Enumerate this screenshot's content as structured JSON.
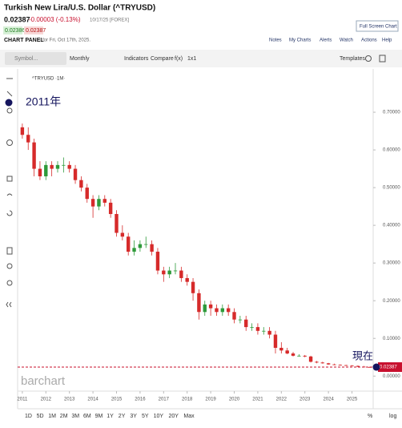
{
  "header": {
    "title": "Turkish New Lira/U.S. Dollar (^TRYUSD)",
    "last": "0.02387",
    "change": "-0.00003 (-0.13%)",
    "date": "10/17/25 [FOREX]",
    "bid": "0.02386",
    "ask": "0.02387",
    "fullscreen": "Full Screen Chart",
    "panel": "CHART PANEL",
    "panel_date": "for Fri, Oct 17th, 2025.",
    "links": [
      "Notes",
      "My Charts",
      "Alerts",
      "Watch",
      "Actions",
      "Help"
    ]
  },
  "toolbar": {
    "symbol": "Symbol...",
    "period": "Monthly",
    "indicators": "Indicators",
    "compare": "Compare",
    "fx": "f(x)",
    "layout": "1x1",
    "templates": "Templates"
  },
  "chart_data": {
    "type": "candlestick",
    "legend": "^TRYUSD ·1M·",
    "watermark": "barchart",
    "annotations": [
      "2011年",
      "現在"
    ],
    "x": [
      2011,
      2011.25,
      2011.5,
      2011.75,
      2012,
      2012.25,
      2012.5,
      2012.75,
      2013,
      2013.25,
      2013.5,
      2013.75,
      2014,
      2014.25,
      2014.5,
      2014.75,
      2015,
      2015.25,
      2015.5,
      2015.75,
      2016,
      2016.25,
      2016.5,
      2016.75,
      2017,
      2017.25,
      2017.5,
      2017.75,
      2018,
      2018.25,
      2018.5,
      2018.75,
      2019,
      2019.25,
      2019.5,
      2019.75,
      2020,
      2020.25,
      2020.5,
      2020.75,
      2021,
      2021.25,
      2021.5,
      2021.75,
      2022,
      2022.25,
      2022.5,
      2022.75,
      2023,
      2023.25,
      2023.5,
      2023.75,
      2024,
      2024.25,
      2024.5,
      2024.75,
      2025,
      2025.25,
      2025.5,
      2025.75
    ],
    "open": [
      0.66,
      0.64,
      0.62,
      0.55,
      0.53,
      0.56,
      0.55,
      0.56,
      0.56,
      0.55,
      0.52,
      0.5,
      0.47,
      0.45,
      0.47,
      0.46,
      0.43,
      0.38,
      0.37,
      0.33,
      0.34,
      0.35,
      0.35,
      0.33,
      0.28,
      0.27,
      0.28,
      0.28,
      0.26,
      0.25,
      0.22,
      0.17,
      0.19,
      0.18,
      0.17,
      0.18,
      0.17,
      0.15,
      0.15,
      0.13,
      0.13,
      0.12,
      0.12,
      0.11,
      0.075,
      0.068,
      0.06,
      0.054,
      0.054,
      0.052,
      0.038,
      0.036,
      0.034,
      0.031,
      0.03,
      0.029,
      0.028,
      0.027,
      0.025,
      0.024
    ],
    "high": [
      0.67,
      0.66,
      0.63,
      0.57,
      0.57,
      0.57,
      0.57,
      0.58,
      0.57,
      0.56,
      0.53,
      0.51,
      0.48,
      0.48,
      0.48,
      0.47,
      0.44,
      0.4,
      0.38,
      0.36,
      0.36,
      0.37,
      0.36,
      0.34,
      0.29,
      0.29,
      0.3,
      0.29,
      0.27,
      0.26,
      0.23,
      0.2,
      0.2,
      0.19,
      0.19,
      0.19,
      0.18,
      0.16,
      0.16,
      0.14,
      0.14,
      0.13,
      0.13,
      0.12,
      0.09,
      0.075,
      0.064,
      0.058,
      0.056,
      0.054,
      0.04,
      0.038,
      0.035,
      0.033,
      0.031,
      0.03,
      0.029,
      0.028,
      0.027,
      0.025
    ],
    "low": [
      0.63,
      0.6,
      0.53,
      0.52,
      0.52,
      0.53,
      0.54,
      0.54,
      0.54,
      0.51,
      0.49,
      0.46,
      0.42,
      0.44,
      0.45,
      0.42,
      0.37,
      0.36,
      0.32,
      0.32,
      0.33,
      0.34,
      0.32,
      0.27,
      0.25,
      0.26,
      0.27,
      0.25,
      0.24,
      0.2,
      0.15,
      0.16,
      0.16,
      0.16,
      0.16,
      0.16,
      0.14,
      0.14,
      0.12,
      0.12,
      0.11,
      0.11,
      0.1,
      0.06,
      0.06,
      0.058,
      0.052,
      0.052,
      0.05,
      0.036,
      0.034,
      0.033,
      0.03,
      0.029,
      0.028,
      0.027,
      0.026,
      0.024,
      0.023,
      0.0235
    ],
    "close": [
      0.64,
      0.62,
      0.55,
      0.53,
      0.56,
      0.55,
      0.56,
      0.56,
      0.55,
      0.52,
      0.5,
      0.47,
      0.45,
      0.47,
      0.46,
      0.43,
      0.38,
      0.37,
      0.33,
      0.34,
      0.35,
      0.35,
      0.33,
      0.28,
      0.27,
      0.28,
      0.28,
      0.26,
      0.25,
      0.22,
      0.17,
      0.19,
      0.18,
      0.17,
      0.18,
      0.17,
      0.15,
      0.15,
      0.13,
      0.13,
      0.12,
      0.12,
      0.11,
      0.075,
      0.068,
      0.06,
      0.054,
      0.054,
      0.052,
      0.038,
      0.036,
      0.034,
      0.031,
      0.03,
      0.029,
      0.028,
      0.027,
      0.025,
      0.024,
      0.02387
    ],
    "up_color": "#2e9a3a",
    "down_color": "#d62a2a",
    "last_color": "#c8102e",
    "marker_color": "#15155e",
    "xlim": [
      2010.8,
      2025.9
    ],
    "xticks": [
      2011,
      2012,
      2013,
      2014,
      2015,
      2016,
      2017,
      2018,
      2019,
      2020,
      2021,
      2022,
      2023,
      2024,
      2025
    ],
    "ylim": [
      -0.025,
      0.8
    ],
    "yticks": [
      {
        "value": 0,
        "label": "0.00000"
      },
      {
        "value": 0.1,
        "label": "0.10000"
      },
      {
        "value": 0.2,
        "label": "0.20000"
      },
      {
        "value": 0.3,
        "label": "0.30000"
      },
      {
        "value": 0.4,
        "label": "0.40000"
      },
      {
        "value": 0.5,
        "label": "0.50000"
      },
      {
        "value": 0.6,
        "label": "0.60000"
      },
      {
        "value": 0.7,
        "label": "0.70000"
      }
    ],
    "grid": false
  },
  "footer": {
    "ranges": [
      "1D",
      "5D",
      "1M",
      "2M",
      "3M",
      "6M",
      "9M",
      "1Y",
      "2Y",
      "3Y",
      "5Y",
      "10Y",
      "20Y",
      "Max"
    ],
    "percent": "%",
    "log": "log"
  }
}
